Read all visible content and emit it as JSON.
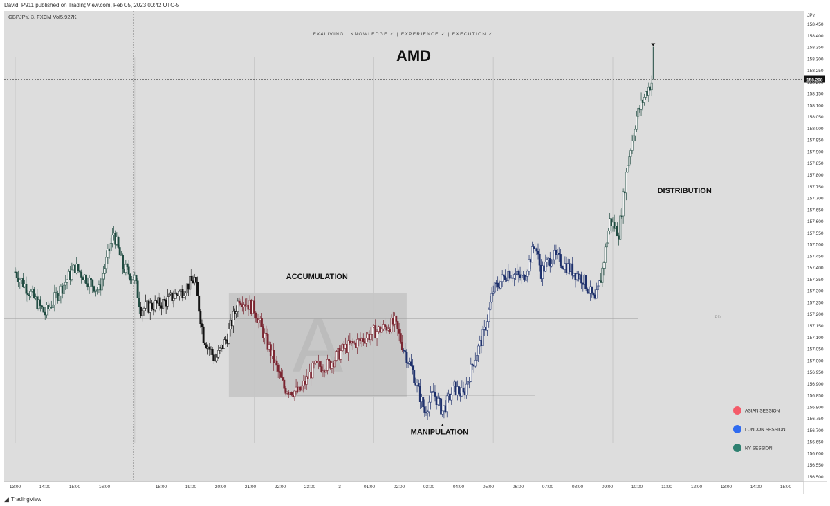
{
  "publish_line": "David_P911 published on TradingView.com, Feb 05, 2023 00:42 UTC-5",
  "symbol_line": "GBPJPY, 3, FXCM  Vol5.927K",
  "currency": "JPY",
  "current_price_label": "158.208",
  "branding": "FX4LIVING | KNOWLEDGE ✓ | EXPERIENCE ✓ | EXECUTION ✓",
  "footer_brand": "TradingView",
  "footer_logo_icon": "tradingview-logo-icon",
  "chart_data": {
    "type": "candlestick",
    "title": "AMD",
    "ylim": [
      156.5,
      158.45
    ],
    "y_ticks": [
      "158.450",
      "158.400",
      "158.350",
      "158.300",
      "158.250",
      "158.200",
      "158.150",
      "158.100",
      "158.050",
      "158.000",
      "157.950",
      "157.900",
      "157.850",
      "157.800",
      "157.750",
      "157.700",
      "157.650",
      "157.600",
      "157.550",
      "157.500",
      "157.450",
      "157.400",
      "157.350",
      "157.300",
      "157.250",
      "157.200",
      "157.150",
      "157.100",
      "157.050",
      "157.000",
      "156.950",
      "156.900",
      "156.850",
      "156.800",
      "156.750",
      "156.700",
      "156.650",
      "156.600",
      "156.550",
      "156.500"
    ],
    "x_ticks": [
      "13:00",
      "14:00",
      "15:00",
      "16:00",
      "18:00",
      "19:00",
      "20:00",
      "21:00",
      "22:00",
      "23:00",
      "3",
      "01:00",
      "02:00",
      "03:00",
      "04:00",
      "05:00",
      "06:00",
      "07:00",
      "08:00",
      "09:00",
      "10:00",
      "11:00",
      "12:00",
      "13:00",
      "14:00",
      "15:00"
    ],
    "price_path": [
      {
        "t": 0,
        "p": 157.38,
        "s": "ny"
      },
      {
        "t": 1,
        "p": 157.2,
        "s": "ny"
      },
      {
        "t": 2,
        "p": 157.4,
        "s": "ny"
      },
      {
        "t": 2.8,
        "p": 157.3,
        "s": "ny"
      },
      {
        "t": 3.3,
        "p": 157.55,
        "s": "ny"
      },
      {
        "t": 3.6,
        "p": 157.4,
        "s": "ny"
      },
      {
        "t": 4.0,
        "p": 157.35,
        "s": "ny"
      },
      {
        "t": 4.2,
        "p": 157.22,
        "s": "asian0"
      },
      {
        "t": 5.0,
        "p": 157.25,
        "s": "asian0"
      },
      {
        "t": 5.6,
        "p": 157.3,
        "s": "asian0"
      },
      {
        "t": 6.0,
        "p": 157.35,
        "s": "asian0"
      },
      {
        "t": 6.3,
        "p": 157.1,
        "s": "asian0"
      },
      {
        "t": 6.7,
        "p": 157.0,
        "s": "asian0"
      },
      {
        "t": 7.1,
        "p": 157.1,
        "s": "asian0"
      },
      {
        "t": 7.5,
        "p": 157.27,
        "s": "asian"
      },
      {
        "t": 8.0,
        "p": 157.22,
        "s": "asian"
      },
      {
        "t": 8.5,
        "p": 157.05,
        "s": "asian"
      },
      {
        "t": 9.0,
        "p": 156.88,
        "s": "asian"
      },
      {
        "t": 9.5,
        "p": 156.86,
        "s": "asian"
      },
      {
        "t": 10.0,
        "p": 156.97,
        "s": "asian"
      },
      {
        "t": 10.5,
        "p": 156.98,
        "s": "asian"
      },
      {
        "t": 11.0,
        "p": 157.05,
        "s": "asian"
      },
      {
        "t": 11.5,
        "p": 157.08,
        "s": "asian"
      },
      {
        "t": 12.0,
        "p": 157.12,
        "s": "asian"
      },
      {
        "t": 12.7,
        "p": 157.16,
        "s": "asian"
      },
      {
        "t": 13.0,
        "p": 157.05,
        "s": "london"
      },
      {
        "t": 13.3,
        "p": 156.95,
        "s": "london"
      },
      {
        "t": 13.7,
        "p": 156.78,
        "s": "london"
      },
      {
        "t": 14.0,
        "p": 156.86,
        "s": "london"
      },
      {
        "t": 14.3,
        "p": 156.78,
        "s": "london"
      },
      {
        "t": 14.7,
        "p": 156.88,
        "s": "london"
      },
      {
        "t": 15.0,
        "p": 156.85,
        "s": "london"
      },
      {
        "t": 15.3,
        "p": 156.98,
        "s": "london"
      },
      {
        "t": 15.7,
        "p": 157.12,
        "s": "london"
      },
      {
        "t": 16.0,
        "p": 157.3,
        "s": "london"
      },
      {
        "t": 16.5,
        "p": 157.38,
        "s": "london"
      },
      {
        "t": 17.0,
        "p": 157.35,
        "s": "london"
      },
      {
        "t": 17.4,
        "p": 157.5,
        "s": "london"
      },
      {
        "t": 17.6,
        "p": 157.38,
        "s": "london"
      },
      {
        "t": 18.0,
        "p": 157.45,
        "s": "london"
      },
      {
        "t": 18.5,
        "p": 157.4,
        "s": "london"
      },
      {
        "t": 19.0,
        "p": 157.35,
        "s": "london"
      },
      {
        "t": 19.4,
        "p": 157.25,
        "s": "london"
      },
      {
        "t": 19.6,
        "p": 157.35,
        "s": "ny"
      },
      {
        "t": 19.9,
        "p": 157.6,
        "s": "ny"
      },
      {
        "t": 20.2,
        "p": 157.55,
        "s": "ny"
      },
      {
        "t": 20.5,
        "p": 157.85,
        "s": "ny"
      },
      {
        "t": 20.8,
        "p": 158.05,
        "s": "ny"
      },
      {
        "t": 21.1,
        "p": 158.15,
        "s": "ny"
      },
      {
        "t": 21.35,
        "p": 158.21,
        "s": "ny"
      }
    ],
    "key_levels": {
      "pdl": 157.18,
      "manipulation_low": 156.85,
      "high_marker": 158.35
    },
    "accumulation_box": {
      "t0": 7.15,
      "t1": 13.1,
      "p_top": 157.29,
      "p_bottom": 156.84
    },
    "annotations": [
      {
        "text": "ACCUMULATION",
        "t": 10.1,
        "p": 157.35
      },
      {
        "text": "MANIPULATION",
        "t": 14.2,
        "p": 156.68
      },
      {
        "text": "DISTRIBUTION",
        "t": 22.4,
        "p": 157.72
      },
      {
        "text": "PDL",
        "t": 23.55,
        "p": 157.18
      }
    ],
    "legend": [
      {
        "label": "ASIAN SESSION",
        "color": "#f45b69"
      },
      {
        "label": "LONDON SESSION",
        "color": "#2f6bf0"
      },
      {
        "label": "NY SESSION",
        "color": "#2e8070"
      }
    ],
    "session_colors": {
      "ny": "#1f4a40",
      "asian0": "#111111",
      "asian": "#7a2530",
      "london": "#1c2f6b"
    },
    "grid": true
  }
}
